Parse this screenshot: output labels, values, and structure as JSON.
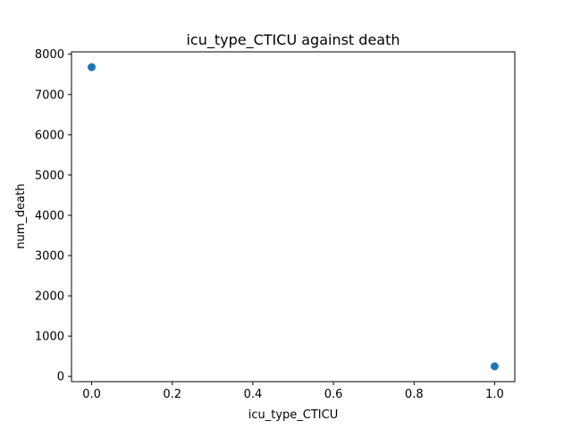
{
  "chart_data": {
    "type": "scatter",
    "title": "icu_type_CTICU against death",
    "xlabel": "icu_type_CTICU",
    "ylabel": "num_death",
    "x": [
      0.0,
      1.0
    ],
    "y": [
      7680,
      250
    ],
    "xlim": [
      -0.05,
      1.05
    ],
    "ylim": [
      -130,
      8060
    ],
    "xticks": [
      0.0,
      0.2,
      0.4,
      0.6,
      0.8,
      1.0
    ],
    "xtick_labels": [
      "0.0",
      "0.2",
      "0.4",
      "0.6",
      "0.8",
      "1.0"
    ],
    "yticks": [
      0,
      1000,
      2000,
      3000,
      4000,
      5000,
      6000,
      7000,
      8000
    ],
    "ytick_labels": [
      "0",
      "1000",
      "2000",
      "3000",
      "4000",
      "5000",
      "6000",
      "7000",
      "8000"
    ],
    "grid": false,
    "marker_color": "#1f77b4"
  }
}
